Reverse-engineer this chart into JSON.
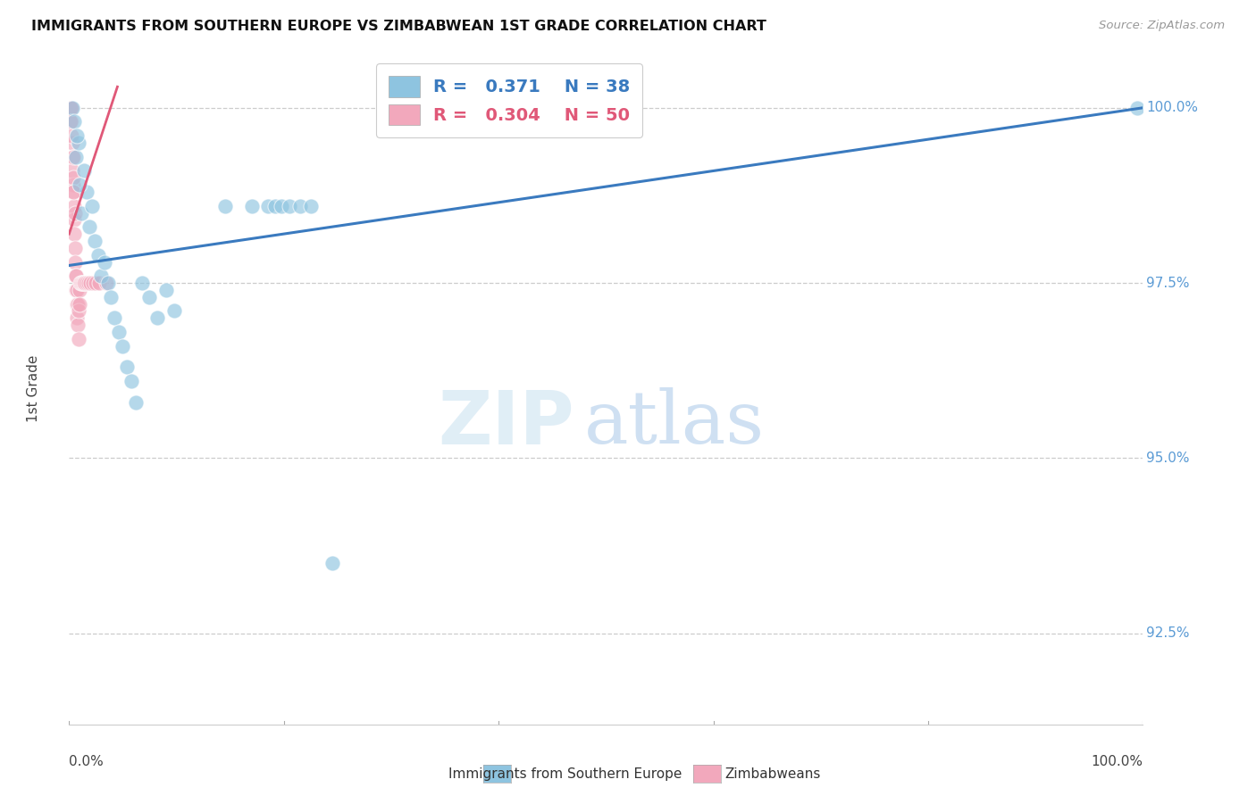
{
  "title": "IMMIGRANTS FROM SOUTHERN EUROPE VS ZIMBABWEAN 1ST GRADE CORRELATION CHART",
  "source": "Source: ZipAtlas.com",
  "ylabel": "1st Grade",
  "yticks": [
    92.5,
    95.0,
    97.5,
    100.0
  ],
  "xlim": [
    0.0,
    100.0
  ],
  "ylim": [
    91.2,
    100.8
  ],
  "blue_R": 0.371,
  "blue_N": 38,
  "pink_R": 0.304,
  "pink_N": 50,
  "blue_color": "#8ec4e0",
  "pink_color": "#f2a8bc",
  "blue_line_color": "#3a7abf",
  "pink_line_color": "#e05878",
  "watermark_zip": "ZIP",
  "watermark_atlas": "atlas",
  "legend_label_blue": "Immigrants from Southern Europe",
  "legend_label_pink": "Zimbabweans",
  "blue_line_x0": 0.0,
  "blue_line_y0": 97.75,
  "blue_line_x1": 100.0,
  "blue_line_y1": 100.0,
  "pink_line_x0": 0.0,
  "pink_line_y0": 98.2,
  "pink_line_x1": 4.5,
  "pink_line_y1": 100.3,
  "blue_points_x": [
    0.3,
    0.6,
    0.9,
    1.1,
    1.4,
    1.6,
    1.9,
    2.1,
    2.4,
    2.7,
    3.0,
    3.3,
    3.6,
    3.9,
    4.2,
    4.6,
    5.0,
    5.4,
    5.8,
    6.2,
    6.8,
    7.5,
    8.2,
    9.0,
    9.8,
    14.5,
    17.0,
    18.5,
    19.2,
    19.8,
    20.5,
    21.5,
    22.5,
    24.5,
    0.5,
    0.7,
    1.0,
    99.5
  ],
  "blue_points_y": [
    100.0,
    99.3,
    99.5,
    98.5,
    99.1,
    98.8,
    98.3,
    98.6,
    98.1,
    97.9,
    97.6,
    97.8,
    97.5,
    97.3,
    97.0,
    96.8,
    96.6,
    96.3,
    96.1,
    95.8,
    97.5,
    97.3,
    97.0,
    97.4,
    97.1,
    98.6,
    98.6,
    98.6,
    98.6,
    98.6,
    98.6,
    98.6,
    98.6,
    93.5,
    99.8,
    99.6,
    98.9,
    100.0
  ],
  "pink_points_x": [
    0.05,
    0.08,
    0.1,
    0.12,
    0.15,
    0.18,
    0.2,
    0.22,
    0.25,
    0.28,
    0.3,
    0.33,
    0.36,
    0.38,
    0.4,
    0.42,
    0.45,
    0.48,
    0.5,
    0.52,
    0.55,
    0.58,
    0.6,
    0.63,
    0.66,
    0.7,
    0.73,
    0.76,
    0.8,
    0.84,
    0.88,
    0.92,
    0.96,
    1.0,
    1.05,
    1.1,
    1.2,
    1.3,
    1.4,
    1.5,
    1.65,
    1.8,
    2.0,
    2.2,
    2.5,
    2.8,
    0.15,
    0.25,
    0.4,
    3.5
  ],
  "pink_points_y": [
    100.0,
    100.0,
    100.0,
    100.0,
    100.0,
    100.0,
    100.0,
    99.8,
    99.8,
    99.5,
    99.3,
    99.1,
    98.9,
    99.3,
    99.0,
    98.8,
    98.6,
    98.4,
    98.2,
    98.5,
    98.0,
    97.8,
    97.6,
    97.4,
    97.6,
    97.2,
    97.0,
    97.4,
    97.2,
    96.9,
    96.7,
    97.1,
    97.4,
    97.2,
    97.5,
    97.5,
    97.5,
    97.5,
    97.5,
    97.5,
    97.5,
    97.5,
    97.5,
    97.5,
    97.5,
    97.5,
    99.8,
    99.6,
    98.8,
    97.5
  ]
}
